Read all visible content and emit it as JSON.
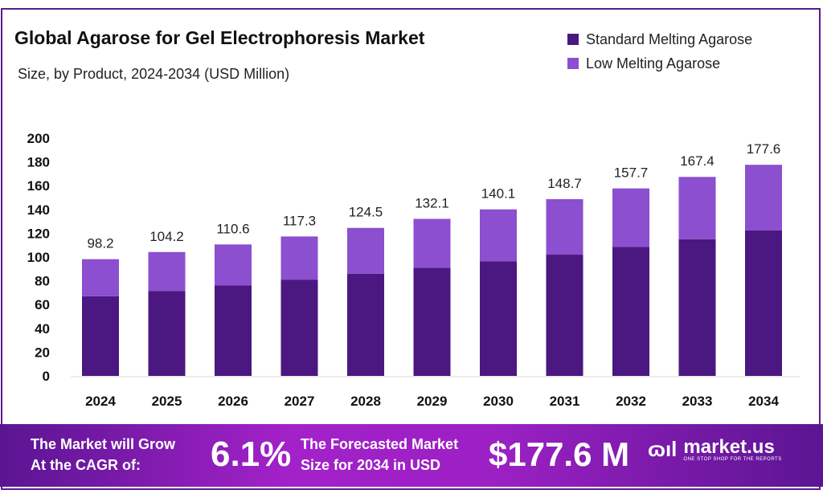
{
  "chart_data": {
    "type": "bar",
    "stacked": true,
    "title": "Global Agarose for Gel Electrophoresis Market",
    "subtitle": "Size, by Product, 2024-2034 (USD Million)",
    "categories": [
      "2024",
      "2025",
      "2026",
      "2027",
      "2028",
      "2029",
      "2030",
      "2031",
      "2032",
      "2033",
      "2034"
    ],
    "series": [
      {
        "name": "Standard Melting Agarose",
        "color": "#4b1780",
        "values": [
          67,
          71.5,
          76,
          81,
          86,
          91,
          96.5,
          102,
          108.5,
          115,
          122.5
        ]
      },
      {
        "name": "Low Melting Agarose",
        "color": "#8b4fcf",
        "values": [
          31.2,
          32.7,
          34.6,
          36.3,
          38.5,
          41.1,
          43.6,
          46.7,
          49.2,
          52.4,
          55.1
        ]
      }
    ],
    "totals": [
      "98.2",
      "104.2",
      "110.6",
      "117.3",
      "124.5",
      "132.1",
      "140.1",
      "148.7",
      "157.7",
      "167.4",
      "177.6"
    ],
    "ylim": [
      0,
      200
    ],
    "yticks": [
      "0",
      "20",
      "40",
      "60",
      "80",
      "100",
      "120",
      "140",
      "160",
      "180",
      "200"
    ],
    "grid": false,
    "legend": "top-right"
  },
  "footer": {
    "cagr_text_1": "The Market will Grow",
    "cagr_text_2": "At the CAGR of:",
    "cagr_value": "6.1%",
    "forecast_text_1": "The Forecasted Market",
    "forecast_text_2": "Size for 2034 in USD",
    "forecast_value": "$177.6 M",
    "logo_name": "market.us",
    "logo_tagline": "ONE STOP SHOP FOR THE REPORTS"
  }
}
